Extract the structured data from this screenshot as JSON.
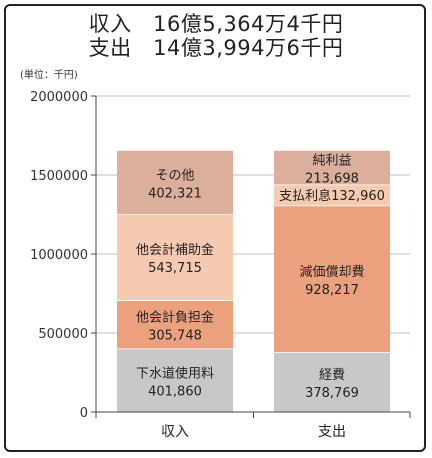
{
  "header": {
    "line1_label": "収入",
    "line1_value": "16億5,364万4千円",
    "line2_label": "支出",
    "line2_value": "14億3,994万6千円"
  },
  "chart_data": {
    "type": "bar",
    "stacked": true,
    "unit_label": "(単位：千円)",
    "ylim": [
      0,
      2000000
    ],
    "yticks": [
      0,
      500000,
      1000000,
      1500000,
      2000000
    ],
    "grid": true,
    "categories": [
      "収入",
      "支出"
    ],
    "bars": [
      {
        "category": "収入",
        "segments": [
          {
            "name": "下水道使用料",
            "value": 401860,
            "label": "401,860",
            "color": "#c8c8c8"
          },
          {
            "name": "他会計負担金",
            "value": 305748,
            "label": "305,748",
            "color": "#eba07e"
          },
          {
            "name": "他会計補助金",
            "value": 543715,
            "label": "543,715",
            "color": "#f6c9b1"
          },
          {
            "name": "その他",
            "value": 402321,
            "label": "402,321",
            "color": "#dbaf9c"
          }
        ]
      },
      {
        "category": "支出",
        "segments": [
          {
            "name": "経費",
            "value": 378769,
            "label": "378,769",
            "color": "#c8c8c8"
          },
          {
            "name": "減価償却費",
            "value": 928217,
            "label": "928,217",
            "color": "#eba07e"
          },
          {
            "name": "支払利息",
            "value": 132960,
            "label": "132,960",
            "color": "#f6c9b1",
            "inline": true
          },
          {
            "name": "純利益",
            "value": 213698,
            "label": "213,698",
            "color": "#dbaf9c"
          }
        ]
      }
    ]
  }
}
